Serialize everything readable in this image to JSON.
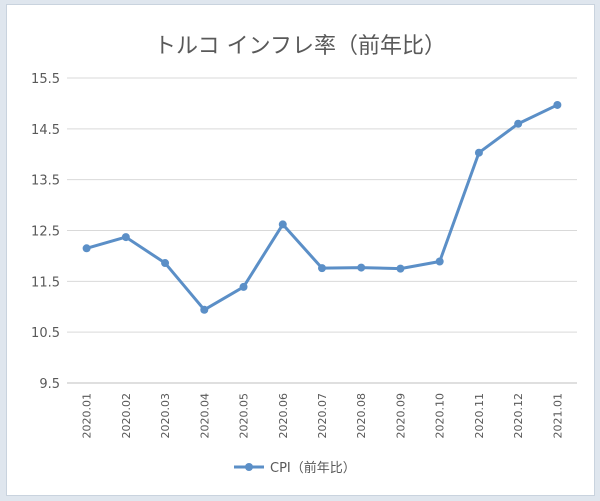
{
  "chart_data": {
    "type": "line",
    "title": "トルコ インフレ率（前年比）",
    "categories": [
      "2020.01",
      "2020.02",
      "2020.03",
      "2020.04",
      "2020.05",
      "2020.06",
      "2020.07",
      "2020.08",
      "2020.09",
      "2020.10",
      "2020.11",
      "2020.12",
      "2021.01"
    ],
    "series": [
      {
        "name": "CPI（前年比）",
        "values": [
          12.15,
          12.37,
          11.86,
          10.94,
          11.39,
          12.62,
          11.76,
          11.77,
          11.75,
          11.89,
          14.03,
          14.6,
          14.97
        ]
      }
    ],
    "yticks": [
      "9.5",
      "10.5",
      "11.5",
      "12.5",
      "13.5",
      "14.5",
      "15.5"
    ],
    "ylim": [
      9.5,
      15.5
    ],
    "grid": true,
    "legend_position": "bottom",
    "colors": {
      "line": "#5b8fc7",
      "grid": "#d9d9d9",
      "axis": "#bfbfbf"
    }
  }
}
